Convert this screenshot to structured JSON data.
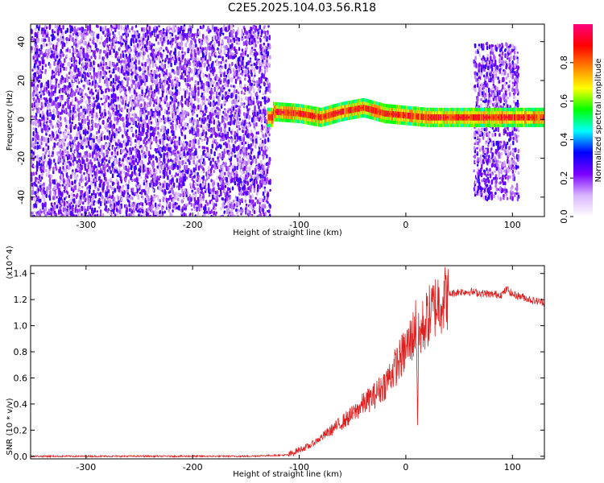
{
  "title": "C2E5.2025.104.03.56.R18",
  "chart_data": [
    {
      "type": "heatmap",
      "xlabel": "Height of straight line (km)",
      "ylabel": "Frequency (Hz)",
      "xlim": [
        -352,
        130
      ],
      "ylim": [
        -50,
        49
      ],
      "x_ticks": [
        -300,
        -200,
        -100,
        0,
        100
      ],
      "x_tick_labels": [
        "-300",
        "-200",
        "-100",
        "0",
        "100"
      ],
      "y_ticks": [
        -40,
        -20,
        0,
        20,
        40
      ],
      "y_tick_labels": [
        "-40",
        "-20",
        "0",
        "20",
        "40"
      ],
      "colorbar": {
        "label": "Normalized spectral amplitude",
        "range": [
          0,
          1
        ],
        "ticks": [
          0.0,
          0.2,
          0.4,
          0.6,
          0.8
        ],
        "tick_labels": [
          "0.0",
          "0.2",
          "0.4",
          "0.6",
          "0.8"
        ],
        "colors": [
          "#ffffff",
          "#d8b4ff",
          "#7a00ff",
          "#0000ff",
          "#00ffff",
          "#00ff00",
          "#ffff00",
          "#ff8000",
          "#ff0000",
          "#ff0080"
        ]
      },
      "regions": [
        {
          "x_range": [
            -352,
            -128
          ],
          "freq_range": [
            -50,
            49
          ],
          "description": "broadband noise, amplitude 0.1-0.3"
        },
        {
          "x_range": [
            -130,
            130
          ],
          "center_freq": [
            [
              -125,
              4
            ],
            [
              -100,
              3
            ],
            [
              -80,
              1
            ],
            [
              -60,
              4
            ],
            [
              -40,
              6
            ],
            [
              -20,
              3
            ],
            [
              0,
              2
            ],
            [
              20,
              1
            ],
            [
              60,
              1
            ],
            [
              130,
              1
            ]
          ],
          "description": "narrow carrier signal, amplitude 0.5-1.0"
        },
        {
          "x_range": [
            63,
            105
          ],
          "freq_range": [
            -40,
            40
          ],
          "description": "noise burst, amplitude 0.1-0.3"
        }
      ]
    },
    {
      "type": "line",
      "xlabel": "Height of straight line (km)",
      "ylabel": "SNR (10 * v/v)",
      "y_multiplier": "(x10^4)",
      "xlim": [
        -352,
        130
      ],
      "ylim": [
        -0.02,
        1.46
      ],
      "x_ticks": [
        -300,
        -200,
        -100,
        0,
        100
      ],
      "x_tick_labels": [
        "-300",
        "-200",
        "-100",
        "0",
        "100"
      ],
      "y_ticks": [
        0.0,
        0.2,
        0.4,
        0.6,
        0.8,
        1.0,
        1.2,
        1.4
      ],
      "y_tick_labels": [
        "0.0",
        "0.2",
        "0.4",
        "0.6",
        "0.8",
        "1.0",
        "1.2",
        "1.4"
      ],
      "line_color": "#e02020",
      "series": [
        {
          "x": [
            -352,
            -300,
            -250,
            -200,
            -150,
            -110,
            -100,
            -90,
            -80,
            -70,
            -60,
            -50,
            -40,
            -30,
            -20,
            -10,
            0,
            5,
            8,
            10,
            11,
            12,
            15,
            20,
            25,
            30,
            40,
            50,
            60,
            70,
            80,
            90,
            95,
            100,
            110,
            120,
            130
          ],
          "y": [
            0.0,
            0.0,
            0.0,
            0.0,
            0.0,
            0.01,
            0.05,
            0.08,
            0.14,
            0.2,
            0.26,
            0.32,
            0.4,
            0.46,
            0.55,
            0.68,
            0.82,
            0.9,
            0.95,
            1.05,
            0.2,
            0.9,
            0.98,
            1.05,
            1.12,
            1.18,
            1.24,
            1.26,
            1.26,
            1.25,
            1.24,
            1.24,
            1.28,
            1.24,
            1.22,
            1.19,
            1.18
          ]
        }
      ]
    }
  ]
}
